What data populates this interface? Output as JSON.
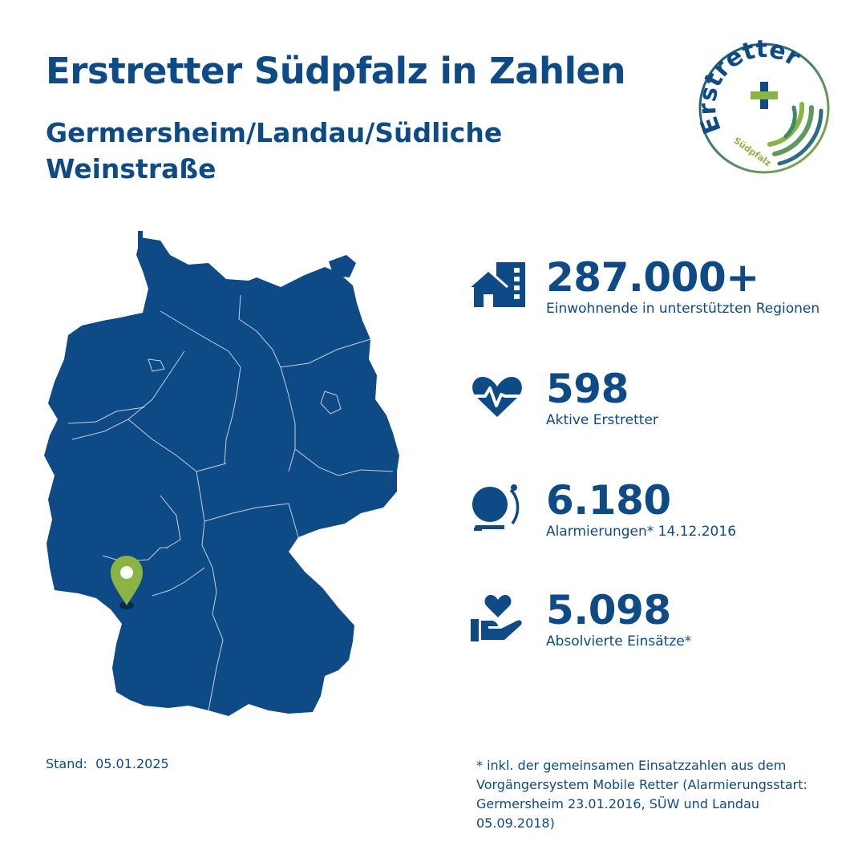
{
  "header": {
    "title": "Erstretter Südpfalz in Zahlen",
    "subtitle": "Germersheim/Landau/Südliche Weinstraße"
  },
  "logo": {
    "word": "Erstretter",
    "sub": "Südpfalz"
  },
  "colors": {
    "primary": "#0d4a86",
    "accent": "#8ab545",
    "background": "#ffffff"
  },
  "stats": [
    {
      "icon": "residential-buildings-icon",
      "value": "287.000+",
      "label": "Einwohnende in unterstützten Regionen"
    },
    {
      "icon": "heart-pulse-icon",
      "value": "598",
      "label": "Aktive Erstretter"
    },
    {
      "icon": "alarm-bell-icon",
      "value": "6.180",
      "label": "Alarmierungen* 14.12.2016"
    },
    {
      "icon": "hand-heart-icon",
      "value": "5.098",
      "label": "Absolvierte Einsätze*"
    }
  ],
  "footer": {
    "stand": "Stand:  05.01.2025",
    "footnote": "* inkl. der gemeinsamen Einsatzzahlen aus dem Vorgängersystem Mobile Retter (Alarmierungsstart: Germersheim 23.01.2016, SÜW und Landau 05.09.2018)"
  }
}
